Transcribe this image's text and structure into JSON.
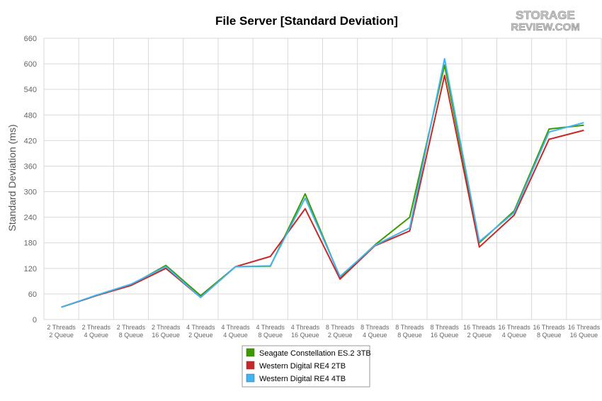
{
  "chart_data": {
    "type": "line",
    "title": "File Server [Standard Deviation]",
    "xlabel": "",
    "ylabel": "Standard Deviation (ms)",
    "ylim": [
      0,
      660
    ],
    "yticks": [
      0,
      60,
      120,
      180,
      240,
      300,
      360,
      420,
      480,
      540,
      600,
      660
    ],
    "grid": true,
    "legend_position": "bottom-center",
    "categories": [
      [
        "2 Threads",
        "2 Queue"
      ],
      [
        "2 Threads",
        "4 Queue"
      ],
      [
        "2 Threads",
        "8 Queue"
      ],
      [
        "2 Threads",
        "16 Queue"
      ],
      [
        "4 Threads",
        "2 Queue"
      ],
      [
        "4 Threads",
        "4 Queue"
      ],
      [
        "4 Threads",
        "8 Queue"
      ],
      [
        "4 Threads",
        "16 Queue"
      ],
      [
        "8 Threads",
        "2 Queue"
      ],
      [
        "8 Threads",
        "4 Queue"
      ],
      [
        "8 Threads",
        "8 Queue"
      ],
      [
        "8 Threads",
        "16 Queue"
      ],
      [
        "16 Threads",
        "2 Queue"
      ],
      [
        "16 Threads",
        "4 Queue"
      ],
      [
        "16 Threads",
        "8 Queue"
      ],
      [
        "16 Threads",
        "16 Queue"
      ]
    ],
    "series": [
      {
        "name": "Seagate Constellation ES.2 3TB",
        "color": "#3a9a00",
        "values": [
          29,
          56,
          81,
          127,
          56,
          124,
          125,
          295,
          99,
          175,
          240,
          597,
          180,
          255,
          447,
          456
        ]
      },
      {
        "name": "Western Digital RE4 2TB",
        "color": "#c62828",
        "values": [
          29,
          56,
          80,
          120,
          52,
          124,
          148,
          260,
          95,
          173,
          208,
          573,
          170,
          245,
          423,
          444
        ]
      },
      {
        "name": "Western Digital RE4 4TB",
        "color": "#42b4f0",
        "values": [
          29,
          57,
          83,
          124,
          52,
          124,
          126,
          285,
          101,
          174,
          215,
          612,
          183,
          251,
          440,
          462
        ]
      }
    ]
  },
  "logo": {
    "line1": "STORAGE",
    "line2": "REVIEW.COM"
  }
}
